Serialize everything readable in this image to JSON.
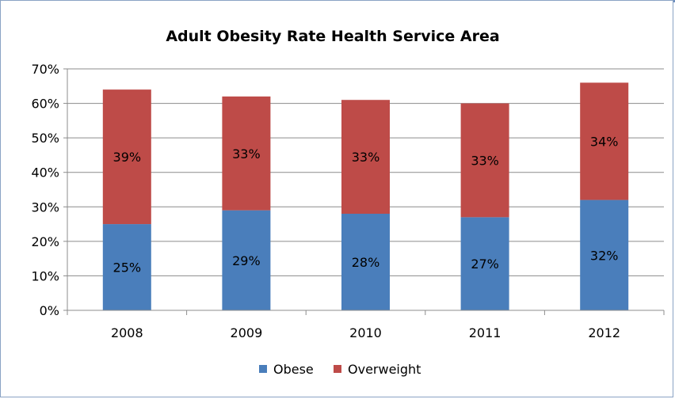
{
  "chart_data": {
    "type": "bar",
    "stacked": true,
    "title": "Adult Obesity Rate Health Service Area",
    "xlabel": "",
    "ylabel": "",
    "categories": [
      "2008",
      "2009",
      "2010",
      "2011",
      "2012"
    ],
    "ylim": [
      0,
      70
    ],
    "yticks": [
      0,
      10,
      20,
      30,
      40,
      50,
      60,
      70
    ],
    "ytick_labels": [
      "0%",
      "10%",
      "20%",
      "30%",
      "40%",
      "50%",
      "60%",
      "70%"
    ],
    "grid": true,
    "legend": "bottom",
    "series": [
      {
        "name": "Obese",
        "color": "#4a7ebb",
        "values": [
          25,
          29,
          28,
          27,
          32
        ],
        "labels": [
          "25%",
          "29%",
          "28%",
          "27%",
          "32%"
        ]
      },
      {
        "name": "Overweight",
        "color": "#be4b48",
        "values": [
          39,
          33,
          33,
          33,
          34
        ],
        "labels": [
          "39%",
          "33%",
          "33%",
          "33%",
          "34%"
        ]
      }
    ]
  }
}
